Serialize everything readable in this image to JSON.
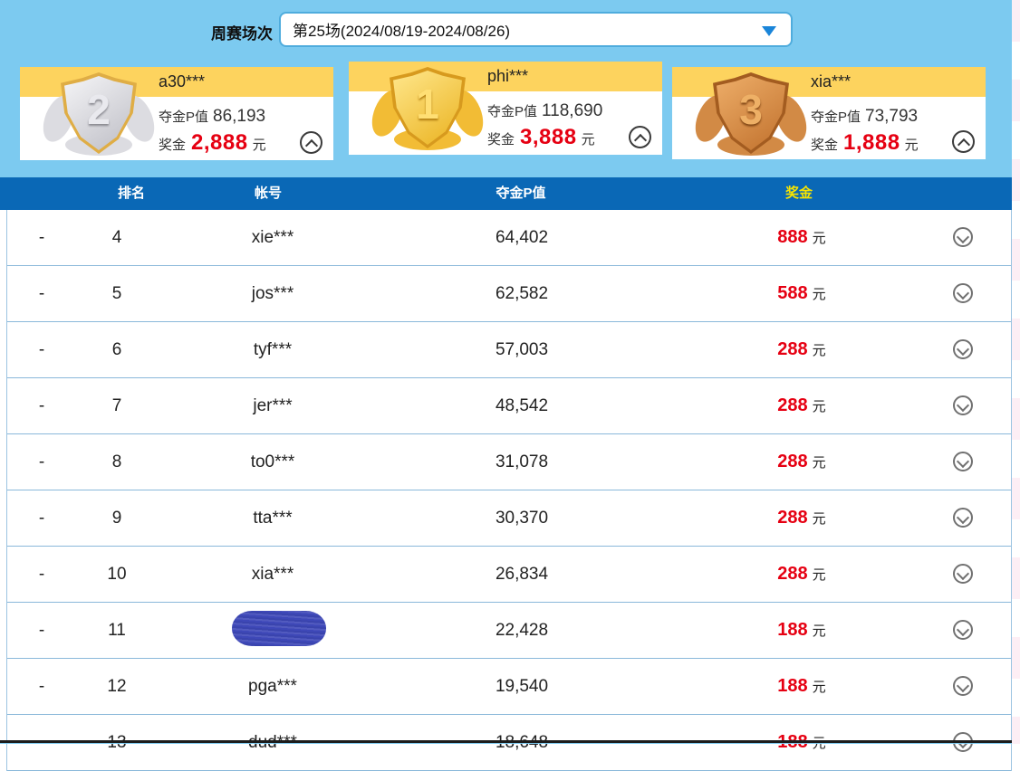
{
  "page": {
    "colors": {
      "top_background": "#7ccaf0",
      "header_bar": "#0a68b6",
      "header_prize_text": "#f7e400",
      "band_yellow": "#fdd35e",
      "accent_red": "#e60012",
      "row_separator": "#8ab8da",
      "redaction_blue": "#3e48b8"
    },
    "icons": {
      "dropdown_caret": "caret-down",
      "card_toggle": "chevron-up-circle",
      "row_toggle": "chevron-down-circle"
    }
  },
  "filter": {
    "label": "周赛场次",
    "value": "第25场(2024/08/19-2024/08/26)"
  },
  "podium": {
    "pvalue_label": "夺金P值",
    "prize_label": "奖金",
    "currency": "元",
    "cards": [
      {
        "rank": "2",
        "medal": "silver",
        "username": "a30***",
        "pvalue": "86,193",
        "prize": "2,888"
      },
      {
        "rank": "1",
        "medal": "gold",
        "username": "phi***",
        "pvalue": "118,690",
        "prize": "3,888"
      },
      {
        "rank": "3",
        "medal": "bronze",
        "username": "xia***",
        "pvalue": "73,793",
        "prize": "1,888"
      }
    ]
  },
  "table": {
    "columns": {
      "rank": "排名",
      "account": "帐号",
      "pvalue": "夺金P值",
      "prize": "奖金"
    },
    "currency": "元",
    "rows": [
      {
        "dash": "-",
        "rank": "4",
        "account": "xie***",
        "pvalue": "64,402",
        "prize": "888"
      },
      {
        "dash": "-",
        "rank": "5",
        "account": "jos***",
        "pvalue": "62,582",
        "prize": "588"
      },
      {
        "dash": "-",
        "rank": "6",
        "account": "tyf***",
        "pvalue": "57,003",
        "prize": "288"
      },
      {
        "dash": "-",
        "rank": "7",
        "account": "jer***",
        "pvalue": "48,542",
        "prize": "288"
      },
      {
        "dash": "-",
        "rank": "8",
        "account": "to0***",
        "pvalue": "31,078",
        "prize": "288"
      },
      {
        "dash": "-",
        "rank": "9",
        "account": "tta***",
        "pvalue": "30,370",
        "prize": "288"
      },
      {
        "dash": "-",
        "rank": "10",
        "account": "xia***",
        "pvalue": "26,834",
        "prize": "288"
      },
      {
        "dash": "-",
        "rank": "11",
        "account": "",
        "redacted": true,
        "pvalue": "22,428",
        "prize": "188"
      },
      {
        "dash": "-",
        "rank": "12",
        "account": "pga***",
        "pvalue": "19,540",
        "prize": "188"
      },
      {
        "dash": "-",
        "rank": "13",
        "account": "dud***",
        "pvalue": "18,648",
        "prize": "188"
      }
    ]
  }
}
